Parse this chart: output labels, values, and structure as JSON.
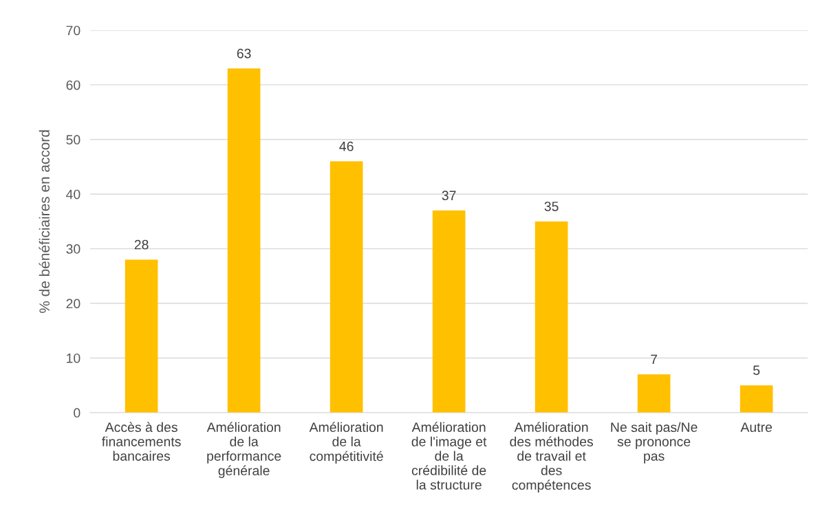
{
  "chart_data": {
    "type": "bar",
    "ylabel": "% de bénéficiaires en accord",
    "categories": [
      "Accès à des\nfinancements\nbancaires",
      "Amélioration\nde la\nperformance\ngénérale",
      "Amélioration\nde la\ncompétitivité",
      "Amélioration\nde l'image et\nde la\ncrédibilité de\nla structure",
      "Amélioration\ndes méthodes\nde travail et\ndes\ncompétences",
      "Ne sait pas/Ne\nse prononce\npas",
      "Autre"
    ],
    "values": [
      28,
      63,
      46,
      37,
      35,
      7,
      5
    ],
    "color": "#ffc000",
    "ylim": [
      0,
      70
    ],
    "yticks": [
      0,
      10,
      20,
      30,
      40,
      50,
      60,
      70
    ],
    "grid": "y",
    "data_labels": true
  }
}
